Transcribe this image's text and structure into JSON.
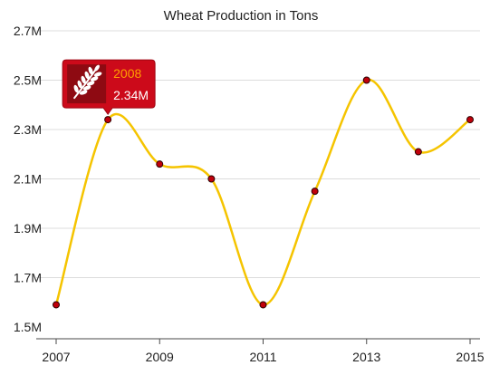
{
  "chart_data": {
    "type": "line",
    "title": "Wheat Production in Tons",
    "x": [
      2007,
      2008,
      2009,
      2010,
      2011,
      2012,
      2013,
      2014,
      2015
    ],
    "x_tick_labels": [
      "2007",
      "2009",
      "2011",
      "2013",
      "2015"
    ],
    "x_tick_values": [
      2007,
      2009,
      2011,
      2013,
      2015
    ],
    "xlim": [
      2007,
      2015
    ],
    "y_tick_labels": [
      "1.5M",
      "1.7M",
      "1.9M",
      "2.1M",
      "2.3M",
      "2.5M",
      "2.7M"
    ],
    "y_tick_values": [
      1.5,
      1.7,
      1.9,
      2.1,
      2.3,
      2.5,
      2.7
    ],
    "ylim": [
      1.5,
      2.7
    ],
    "series": [
      {
        "values": [
          1.59,
          2.34,
          2.16,
          2.1,
          1.59,
          2.05,
          2.5,
          2.21,
          2.34
        ]
      }
    ],
    "grid": true,
    "curve": "spline",
    "markers": true,
    "tooltip": {
      "x_label": "2008",
      "value_label": "2.34M",
      "point_index": 1,
      "icon": "wheat-icon"
    }
  },
  "colors": {
    "line": "#f5c400",
    "marker": "#c0000b",
    "tooltip_bg": "#cc0a1a",
    "tooltip_icon_bg": "#8e0a12",
    "tooltip_year": "#ffa000",
    "tooltip_value": "#ffffff",
    "grid": "#dcdcdc"
  }
}
